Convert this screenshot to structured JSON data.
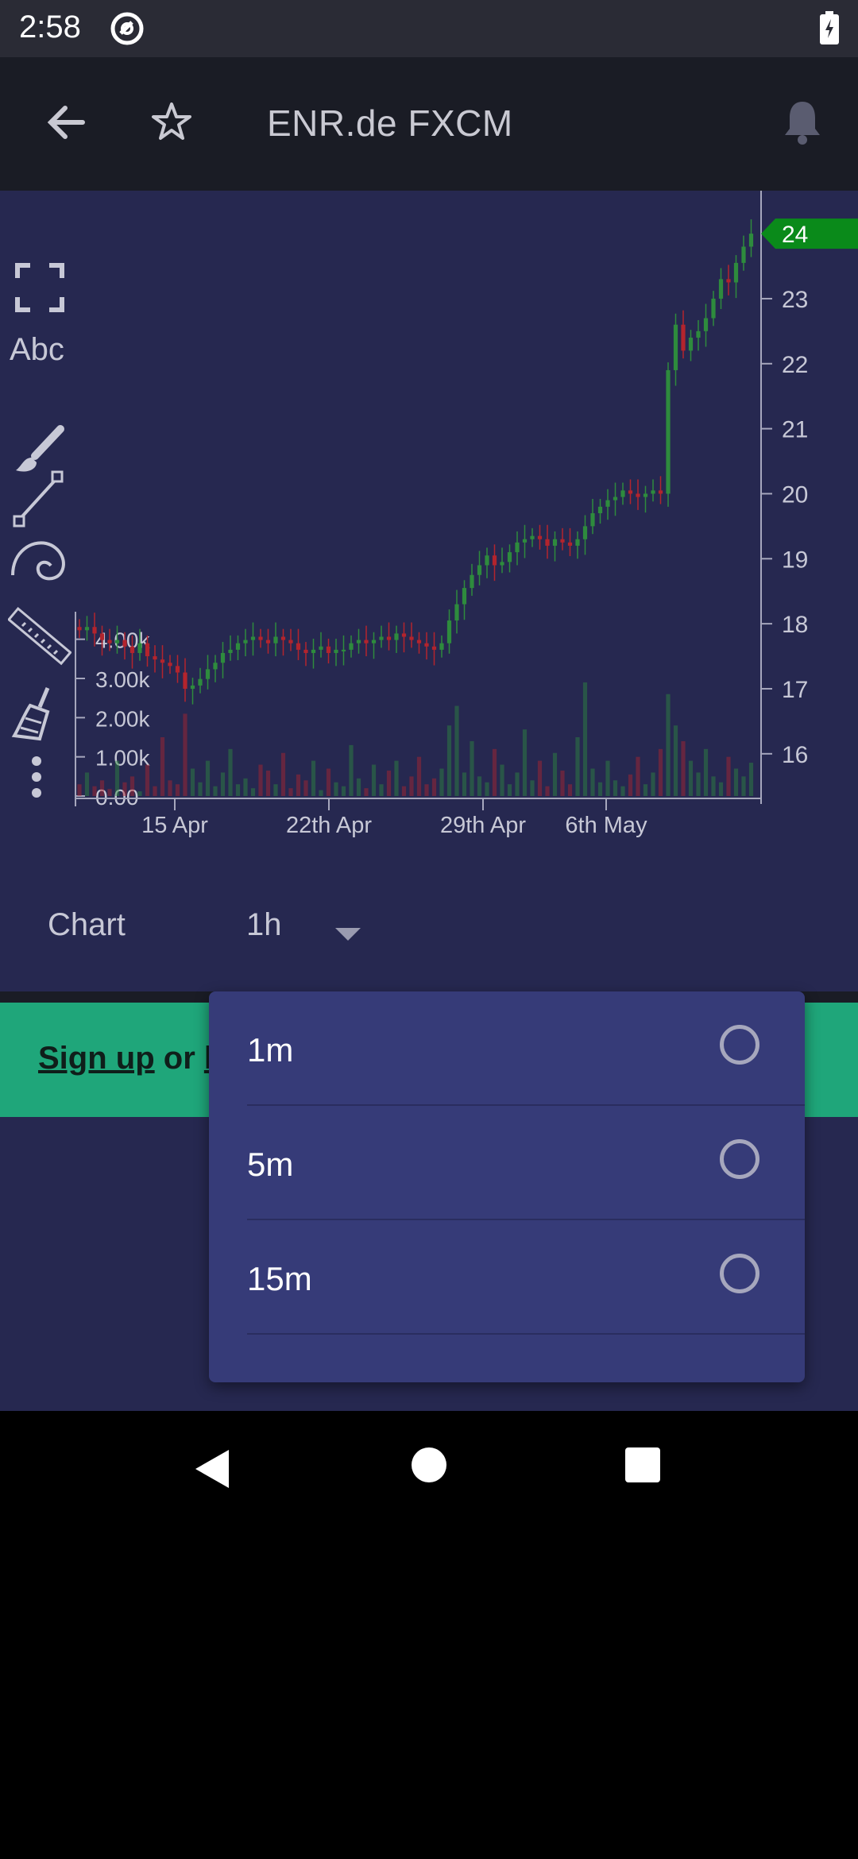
{
  "status_bar": {
    "time": "2:58"
  },
  "toolbar": {
    "title": "ENR.de FXCM"
  },
  "drawing_tools": {
    "text_tool_label": "Abc",
    "icons": [
      "fullscreen-icon",
      "text-tool-icon",
      "brush-icon",
      "line-tool-icon",
      "spiral-icon",
      "ruler-icon",
      "eraser-broom-icon",
      "more-vertical-icon"
    ]
  },
  "interval": {
    "label": "Chart",
    "value": "1h"
  },
  "banner": {
    "signup": "Sign up",
    "or": " or ",
    "login_partial": "l"
  },
  "dropdown": {
    "options": [
      {
        "label": "1m",
        "selected": false
      },
      {
        "label": "5m",
        "selected": false
      },
      {
        "label": "15m",
        "selected": false
      }
    ]
  },
  "colors": {
    "background": "#262850",
    "up": "#2e8b3d",
    "down": "#b3242d",
    "price_badge": "#0a8a1a",
    "banner": "#1fa67a"
  },
  "chart_data": {
    "type": "candlestick",
    "title": "",
    "current_price_label": "24",
    "y_ticks": [
      "16",
      "17",
      "18",
      "19",
      "20",
      "21",
      "22",
      "23",
      "24"
    ],
    "ylim": [
      15.35,
      24.6
    ],
    "x_ticks": [
      "15 Apr",
      "22th Apr",
      "29th Apr",
      "6th May"
    ],
    "volume_ticks": [
      "0.00",
      "1.00k",
      "2.00k",
      "3.00k",
      "4.00k"
    ],
    "volume_ylim": [
      0,
      4500
    ],
    "close_series": [
      17.9,
      17.95,
      17.85,
      17.75,
      17.7,
      17.75,
      17.65,
      17.55,
      17.7,
      17.5,
      17.45,
      17.4,
      17.35,
      17.25,
      17.0,
      17.05,
      17.15,
      17.3,
      17.4,
      17.55,
      17.6,
      17.7,
      17.75,
      17.8,
      17.75,
      17.7,
      17.8,
      17.75,
      17.7,
      17.6,
      17.55,
      17.6,
      17.65,
      17.55,
      17.6,
      17.6,
      17.7,
      17.75,
      17.7,
      17.75,
      17.8,
      17.75,
      17.85,
      17.8,
      17.75,
      17.7,
      17.65,
      17.6,
      17.7,
      18.05,
      18.3,
      18.55,
      18.75,
      18.9,
      19.05,
      18.9,
      18.95,
      19.1,
      19.25,
      19.3,
      19.35,
      19.3,
      19.2,
      19.3,
      19.25,
      19.2,
      19.3,
      19.5,
      19.7,
      19.8,
      19.9,
      19.95,
      20.05,
      20.0,
      19.95,
      20.0,
      20.05,
      20.0,
      21.9,
      22.6,
      22.2,
      22.4,
      22.5,
      22.7,
      23.0,
      23.3,
      23.25,
      23.55,
      23.8,
      24.0
    ],
    "volume_series": [
      300,
      600,
      250,
      400,
      180,
      900,
      350,
      500,
      120,
      800,
      250,
      1500,
      400,
      300,
      2100,
      700,
      350,
      900,
      250,
      600,
      1200,
      300,
      450,
      200,
      800,
      650,
      300,
      1100,
      200,
      550,
      400,
      900,
      150,
      700,
      350,
      250,
      1300,
      450,
      200,
      800,
      300,
      650,
      900,
      250,
      500,
      1000,
      300,
      450,
      700,
      1800,
      2300,
      600,
      1400,
      500,
      350,
      1200,
      800,
      300,
      600,
      1700,
      400,
      900,
      250,
      1100,
      650,
      300,
      1500,
      2900,
      700,
      350,
      900,
      400,
      250,
      550,
      1000,
      300,
      600,
      1200,
      2600,
      1800,
      1400,
      900,
      600,
      1200,
      500,
      350,
      1000,
      700,
      500,
      850
    ]
  }
}
